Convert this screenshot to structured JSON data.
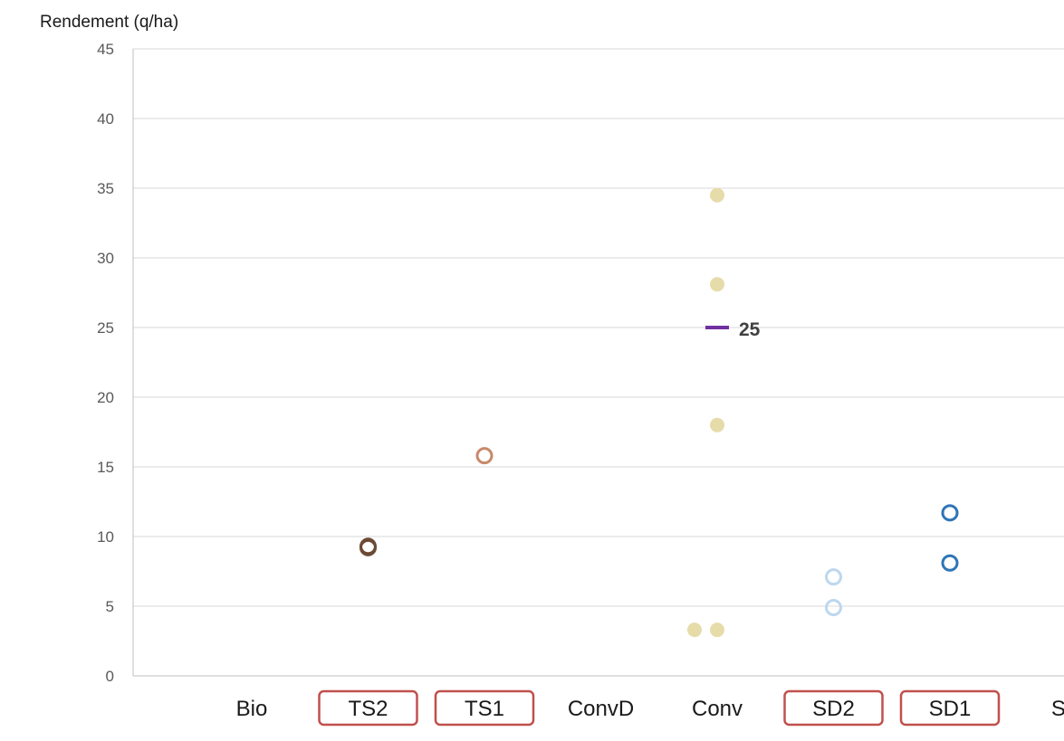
{
  "chart_data": {
    "type": "scatter",
    "title": "",
    "ylabel": "Rendement (q/ha)",
    "xlabel": "",
    "ylim": [
      0,
      45
    ],
    "yticks": [
      0,
      5,
      10,
      15,
      20,
      25,
      30,
      35,
      40,
      45
    ],
    "grid": true,
    "categories": [
      "Bio",
      "TS2",
      "TS1",
      "ConvD",
      "Conv",
      "SD2",
      "SD1",
      "SD"
    ],
    "boxed_categories": [
      "TS2",
      "TS1",
      "SD2",
      "SD1"
    ],
    "box_color": "#c0504d",
    "series": [
      {
        "category": "TS2",
        "marker": "open-circle",
        "color": "#6b4a35",
        "values": [
          9.3,
          9.2
        ]
      },
      {
        "category": "TS1",
        "marker": "open-circle",
        "color": "#c8896a",
        "values": [
          15.8
        ]
      },
      {
        "category": "Conv",
        "marker": "filled-circle",
        "color": "#e6dcaa",
        "values": [
          34.5,
          28.1,
          18.0,
          3.3,
          3.3
        ],
        "offsets": [
          0,
          0,
          0,
          -1,
          0
        ]
      },
      {
        "category": "SD2",
        "marker": "open-circle",
        "color": "#bdd7ee",
        "values": [
          7.1,
          4.9
        ]
      },
      {
        "category": "SD1",
        "marker": "open-circle",
        "color": "#2e75b6",
        "values": [
          11.7,
          8.1
        ]
      }
    ],
    "mean_markers": [
      {
        "category": "Conv",
        "value": 25,
        "label": "25",
        "color": "#7030a0"
      }
    ]
  }
}
